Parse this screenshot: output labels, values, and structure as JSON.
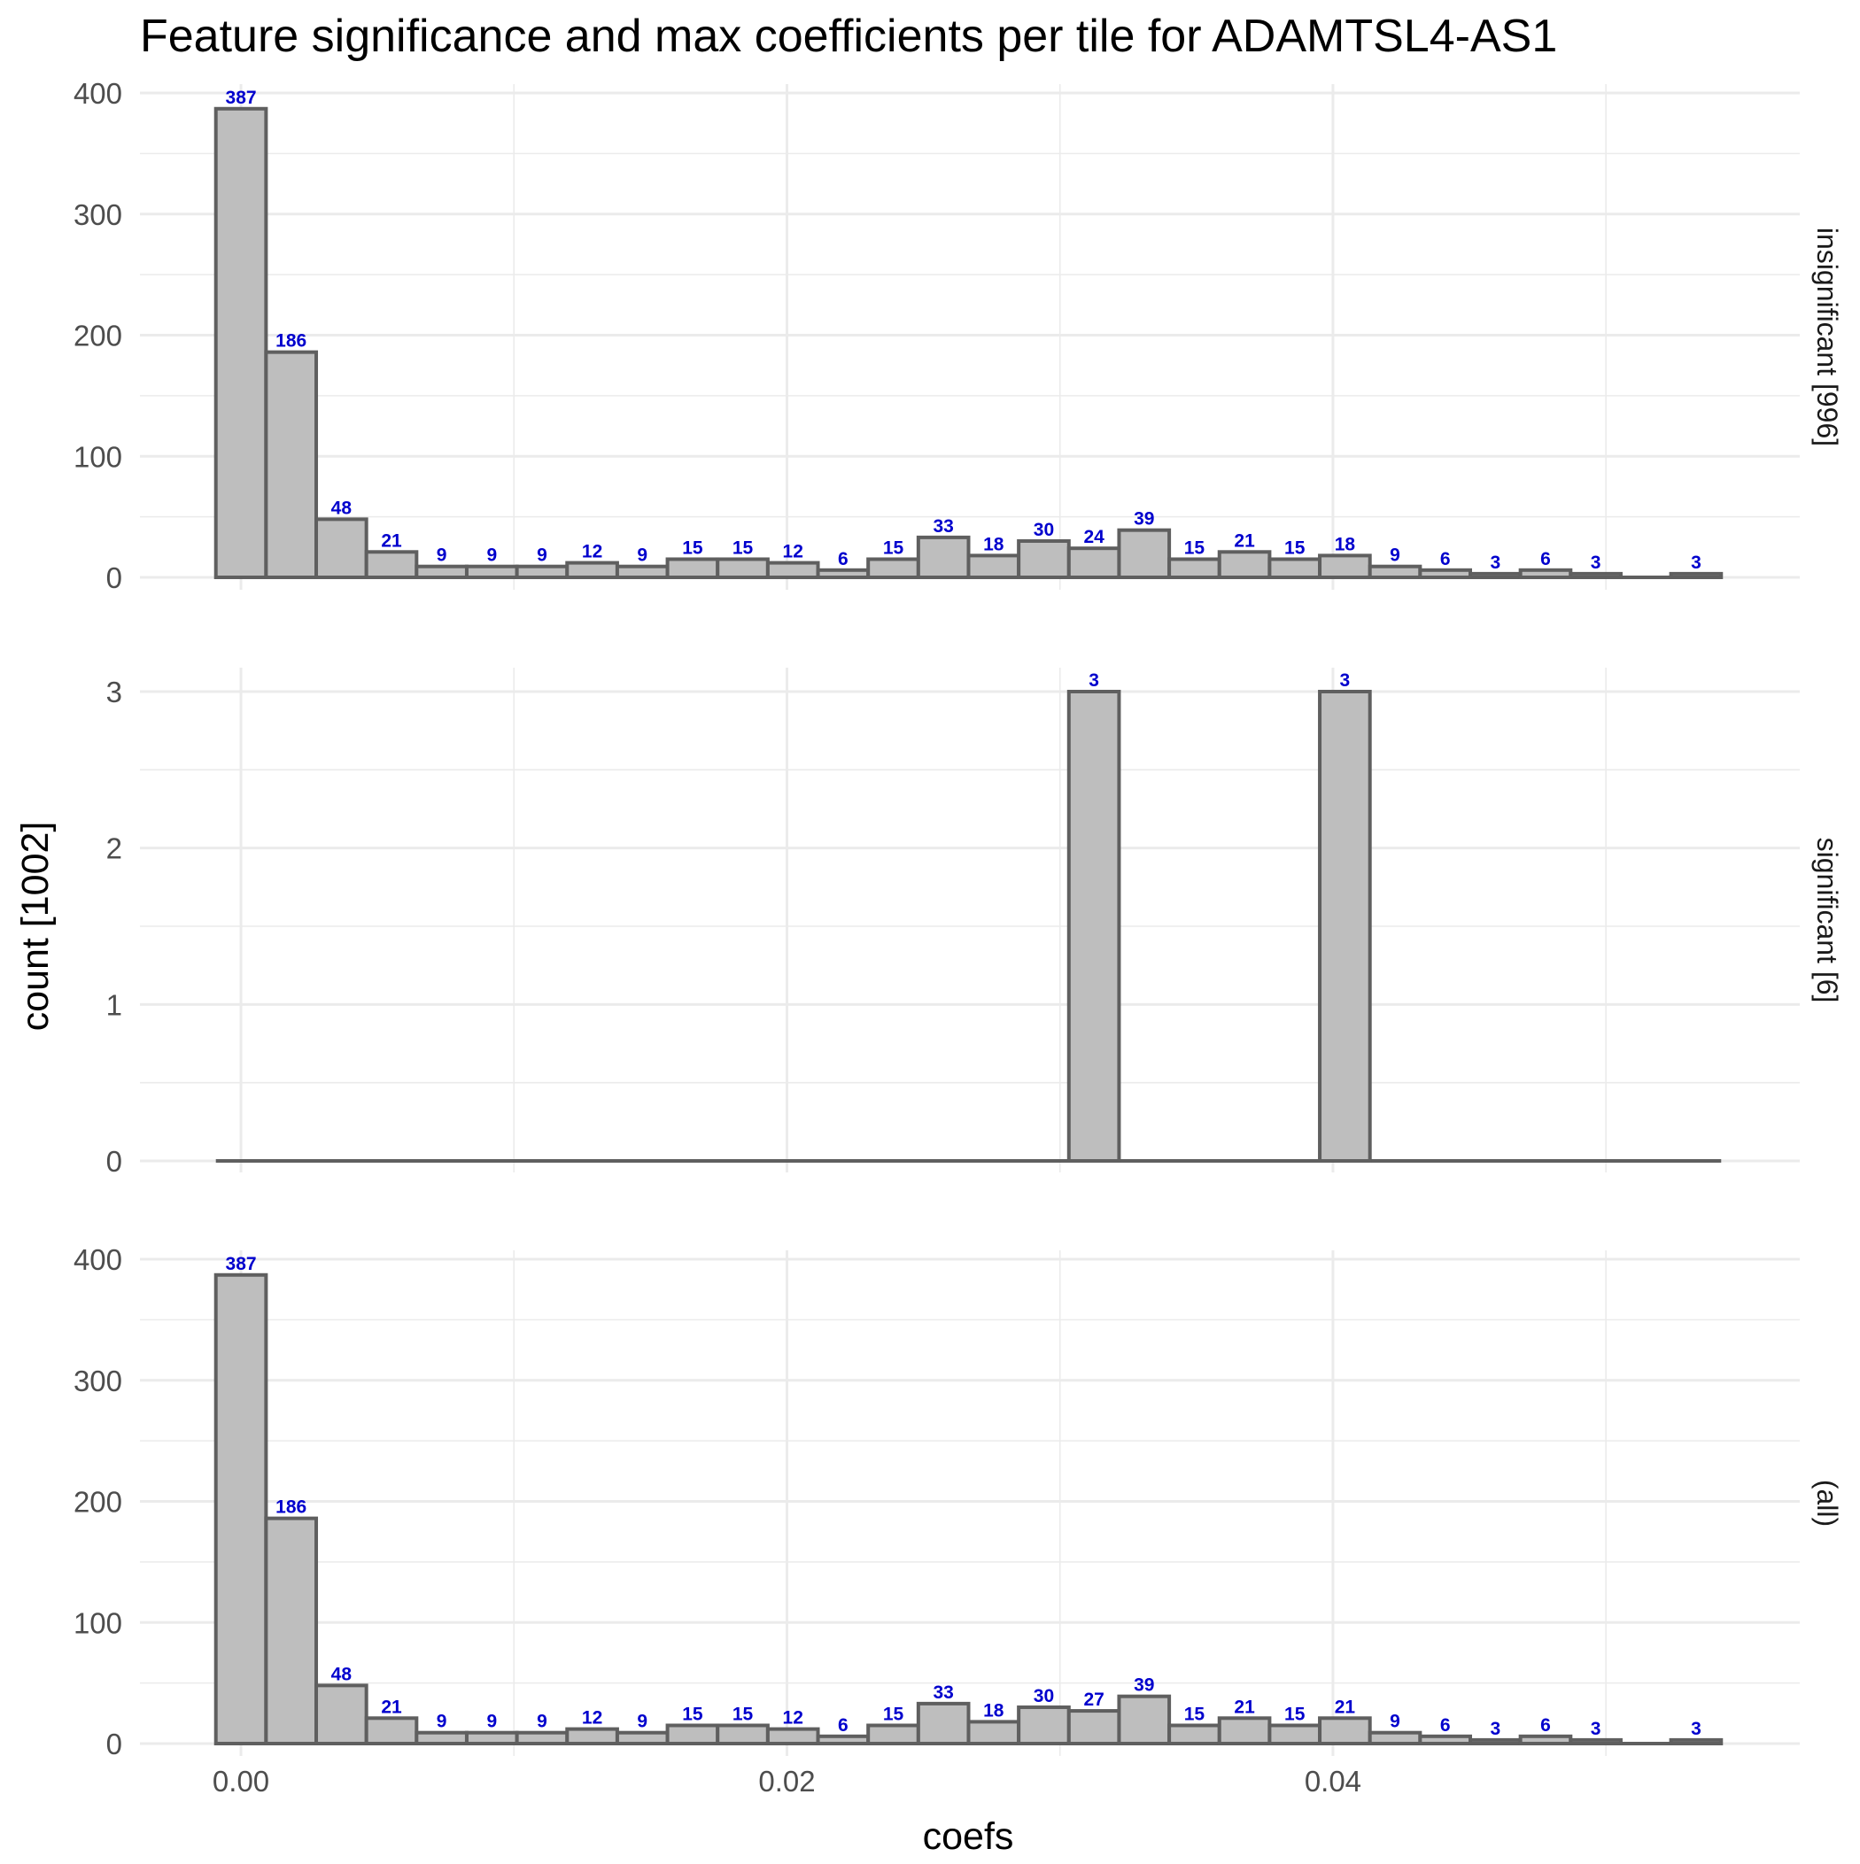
{
  "chart_data": {
    "type": "bar",
    "title": "Feature significance and max coefficients per tile for ADAMTSL4-AS1",
    "xlabel": "coefs",
    "ylabel": "count [1002]",
    "bin_width": 0.001838,
    "x_bin_centers": [
      0,
      0.001838,
      0.003676,
      0.005514,
      0.007352,
      0.00919,
      0.011028,
      0.012866,
      0.014704,
      0.016542,
      0.01838,
      0.020218,
      0.022056,
      0.023894,
      0.025732,
      0.02757,
      0.029408,
      0.031246,
      0.033084,
      0.034922,
      0.03676,
      0.038598,
      0.040436,
      0.042274,
      0.044112,
      0.04595,
      0.047788,
      0.049626,
      0.051464,
      0.053302
    ],
    "xlim": [
      -0.0037,
      0.0571
    ],
    "x_ticks": [
      "0.00",
      "0.02",
      "0.04"
    ],
    "x_tick_values": [
      0,
      0.02,
      0.04
    ],
    "panels": [
      {
        "name": "insignificant [996]",
        "ylim": [
          0,
          400
        ],
        "y_ticks": [
          "0",
          "100",
          "200",
          "300",
          "400"
        ],
        "y_tick_values": [
          0,
          100,
          200,
          300,
          400
        ],
        "values": [
          387,
          186,
          48,
          21,
          9,
          9,
          9,
          12,
          9,
          15,
          15,
          12,
          6,
          15,
          33,
          18,
          30,
          24,
          39,
          15,
          21,
          15,
          18,
          9,
          6,
          3,
          6,
          3,
          0,
          3
        ],
        "labels": [
          "387",
          "186",
          "48",
          "21",
          "9",
          "9",
          "9",
          "12",
          "9",
          "15",
          "15",
          "12",
          "6",
          "15",
          "33",
          "18",
          "30",
          "24",
          "39",
          "15",
          "21",
          "15",
          "18",
          "9",
          "6",
          "3",
          "6",
          "3",
          "",
          "3"
        ]
      },
      {
        "name": "significant [6]",
        "ylim": [
          0,
          3
        ],
        "y_ticks": [
          "0",
          "1",
          "2",
          "3"
        ],
        "y_tick_values": [
          0,
          1,
          2,
          3
        ],
        "values": [
          0,
          0,
          0,
          0,
          0,
          0,
          0,
          0,
          0,
          0,
          0,
          0,
          0,
          0,
          0,
          0,
          0,
          3,
          0,
          0,
          0,
          0,
          3,
          0,
          0,
          0,
          0,
          0,
          0,
          0
        ],
        "labels": [
          "",
          "",
          "",
          "",
          "",
          "",
          "",
          "",
          "",
          "",
          "",
          "",
          "",
          "",
          "",
          "",
          "",
          "3",
          "",
          "",
          "",
          "",
          "3",
          "",
          "",
          "",
          "",
          "",
          "",
          ""
        ]
      },
      {
        "name": "(all)",
        "ylim": [
          0,
          400
        ],
        "y_ticks": [
          "0",
          "100",
          "200",
          "300",
          "400"
        ],
        "y_tick_values": [
          0,
          100,
          200,
          300,
          400
        ],
        "values": [
          387,
          186,
          48,
          21,
          9,
          9,
          9,
          12,
          9,
          15,
          15,
          12,
          6,
          15,
          33,
          18,
          30,
          27,
          39,
          15,
          21,
          15,
          21,
          9,
          6,
          3,
          6,
          3,
          0,
          3
        ],
        "labels": [
          "387",
          "186",
          "48",
          "21",
          "9",
          "9",
          "9",
          "12",
          "9",
          "15",
          "15",
          "12",
          "6",
          "15",
          "33",
          "18",
          "30",
          "27",
          "39",
          "15",
          "21",
          "15",
          "21",
          "9",
          "6",
          "3",
          "6",
          "3",
          "",
          "3"
        ]
      }
    ],
    "colors": {
      "bar_fill": "#bebebe",
      "bar_outline": "#5f5f5f",
      "value_label": "#0000cd",
      "grid": "#ebebeb",
      "tick_text": "#4d4d4d"
    },
    "grid": true,
    "legend": "none"
  }
}
